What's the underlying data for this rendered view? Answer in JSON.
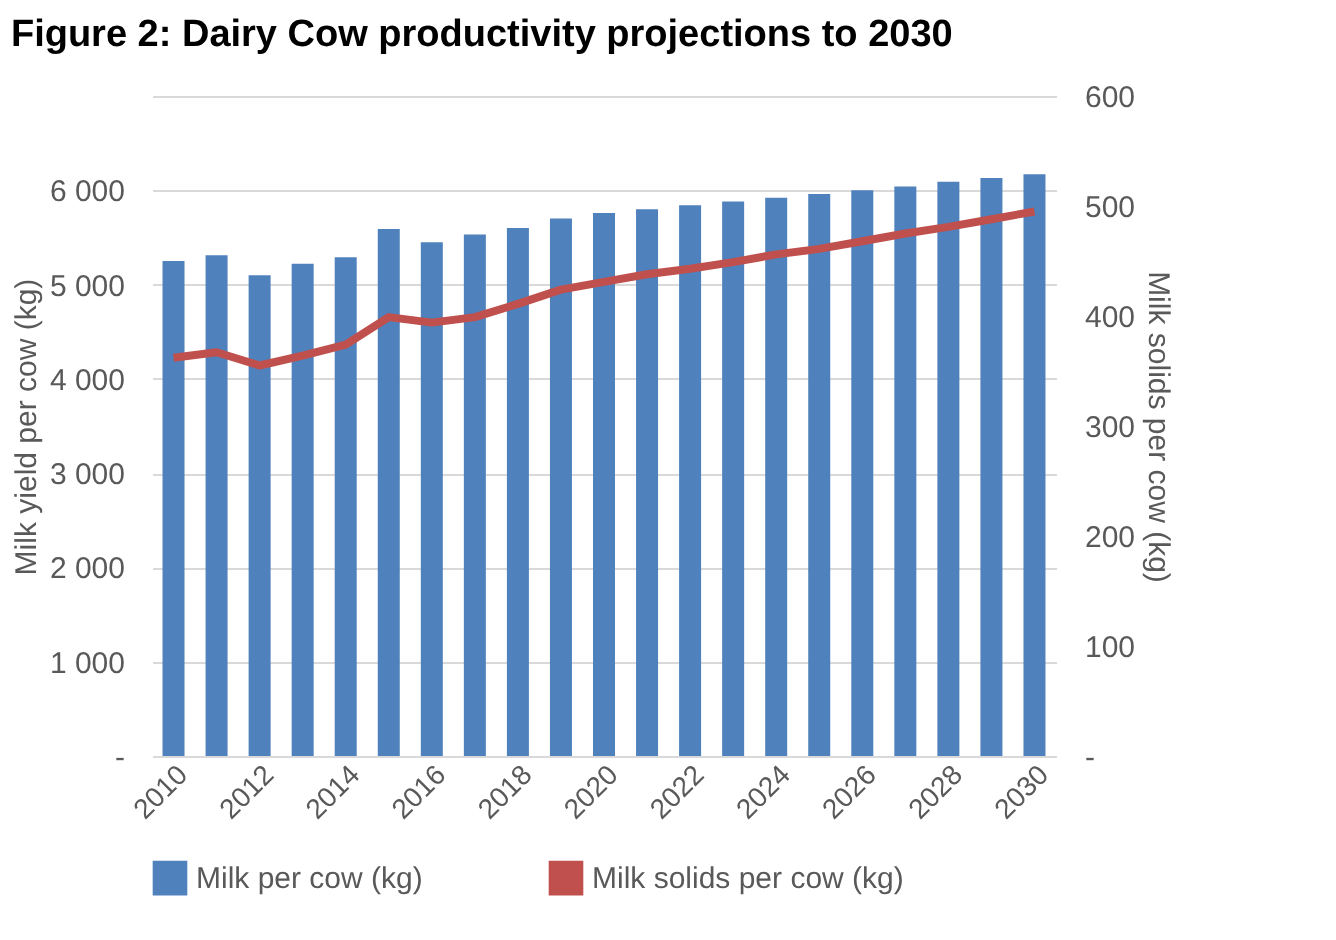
{
  "chart_data": {
    "type": "bar",
    "title": "Figure 2: Dairy Cow productivity projections to 2030",
    "ylabel": "Milk yield per cow (kg)",
    "y2label": "Milk solids per cow (kg)",
    "categories": [
      "2010",
      null,
      "2012",
      null,
      "2014",
      null,
      "2016",
      null,
      "2018",
      null,
      "2020",
      null,
      "2022",
      null,
      "2024",
      null,
      "2026",
      null,
      "2028",
      null,
      "2030"
    ],
    "series": [
      {
        "name": "Milk per cow (kg)",
        "color": "#4f81bd",
        "values": [
          5250,
          5310,
          5100,
          5220,
          5290,
          5590,
          5450,
          5530,
          5600,
          5700,
          5760,
          5800,
          5840,
          5880,
          5920,
          5960,
          6000,
          6040,
          6090,
          6130,
          6170
        ]
      },
      {
        "name": "Milk solids per cow (kg)",
        "type": "line",
        "axis": "y2",
        "color": "#c0504d",
        "values": [
          362,
          367,
          355,
          364,
          374,
          399,
          394,
          399,
          411,
          424,
          431,
          438,
          443,
          449,
          456,
          461,
          468,
          475,
          481,
          488,
          495
        ]
      }
    ],
    "ylim": [
      0,
      7000
    ],
    "yticks": [
      {
        "value": 0,
        "label": "-"
      },
      {
        "value": 1000,
        "label": "1 000"
      },
      {
        "value": 2000,
        "label": "2 000"
      },
      {
        "value": 3000,
        "label": "3 000"
      },
      {
        "value": 4000,
        "label": "4 000"
      },
      {
        "value": 5000,
        "label": "5 000"
      },
      {
        "value": 6000,
        "label": "6 000"
      },
      {
        "value": 7000,
        "label": null
      }
    ],
    "y2lim": [
      0,
      600
    ],
    "y2ticks": [
      {
        "value": 0,
        "label": "-"
      },
      100,
      200,
      300,
      400,
      500,
      600
    ],
    "grid": "y",
    "legend": "bottom",
    "line_style": "solid",
    "marker": "none"
  }
}
